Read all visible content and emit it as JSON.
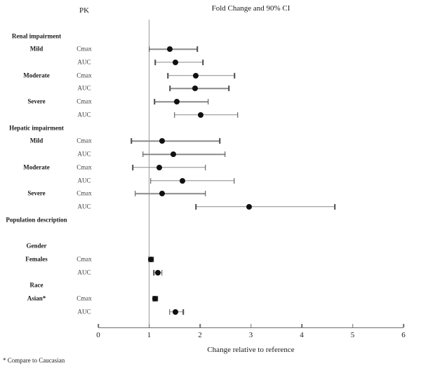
{
  "footnote": "* Compare to Caucasian",
  "colors": {
    "dot": "#111111",
    "ci_line": "#8a8a8a",
    "ci_cap": "#4d4d4d",
    "axis": "#6e6e6e",
    "reference_line": "#9c9c9c",
    "text": "#1a1a1a"
  },
  "chart_data": {
    "type": "scatter",
    "variant": "forest-plot (point estimate with 90% CI error bars)",
    "title": "Fold Change and 90% CI",
    "column_headers": {
      "pk": "PK"
    },
    "xlabel": "Change relative to reference",
    "xlim": [
      0,
      6
    ],
    "xticks": [
      0,
      1,
      2,
      3,
      4,
      5,
      6
    ],
    "reference_line_x": 1,
    "grid": false,
    "rows": [
      {
        "kind": "section",
        "label": "Renal impairment"
      },
      {
        "kind": "item",
        "label": "Mild",
        "param": "Cmax",
        "est": 1.4,
        "lo": 1.0,
        "hi": 1.95
      },
      {
        "kind": "item",
        "label": "",
        "param": "AUC",
        "est": 1.52,
        "lo": 1.12,
        "hi": 2.06
      },
      {
        "kind": "item",
        "label": "Moderate",
        "param": "Cmax",
        "est": 1.92,
        "lo": 1.37,
        "hi": 2.68
      },
      {
        "kind": "item",
        "label": "",
        "param": "AUC",
        "est": 1.9,
        "lo": 1.41,
        "hi": 2.57
      },
      {
        "kind": "item",
        "label": "Severe",
        "param": "Cmax",
        "est": 1.54,
        "lo": 1.11,
        "hi": 2.16
      },
      {
        "kind": "item",
        "label": "",
        "param": "AUC",
        "est": 2.01,
        "lo": 1.5,
        "hi": 2.74
      },
      {
        "kind": "section",
        "label": "Hepatic impairment"
      },
      {
        "kind": "item",
        "label": "Mild",
        "param": "Cmax",
        "est": 1.25,
        "lo": 0.65,
        "hi": 2.39
      },
      {
        "kind": "item",
        "label": "",
        "param": "AUC",
        "est": 1.48,
        "lo": 0.88,
        "hi": 2.49
      },
      {
        "kind": "item",
        "label": "Moderate",
        "param": "Cmax",
        "est": 1.2,
        "lo": 0.68,
        "hi": 2.11
      },
      {
        "kind": "item",
        "label": "",
        "param": "AUC",
        "est": 1.65,
        "lo": 1.03,
        "hi": 2.67
      },
      {
        "kind": "item",
        "label": "Severe",
        "param": "Cmax",
        "est": 1.25,
        "lo": 0.73,
        "hi": 2.11
      },
      {
        "kind": "item",
        "label": "",
        "param": "AUC",
        "est": 2.97,
        "lo": 1.92,
        "hi": 4.65
      },
      {
        "kind": "section",
        "label": "Population description"
      },
      {
        "kind": "spacer"
      },
      {
        "kind": "section",
        "label": "Gender"
      },
      {
        "kind": "item",
        "label": "Females",
        "param": "Cmax",
        "est": 1.03,
        "lo": 0.99,
        "hi": 1.08
      },
      {
        "kind": "item",
        "label": "",
        "param": "AUC",
        "est": 1.17,
        "lo": 1.09,
        "hi": 1.25
      },
      {
        "kind": "section",
        "label": "Race"
      },
      {
        "kind": "item",
        "label": "Asian*",
        "param": "Cmax",
        "est": 1.12,
        "lo": 1.08,
        "hi": 1.16
      },
      {
        "kind": "item",
        "label": "",
        "param": "AUC",
        "est": 1.52,
        "lo": 1.4,
        "hi": 1.67
      }
    ]
  }
}
